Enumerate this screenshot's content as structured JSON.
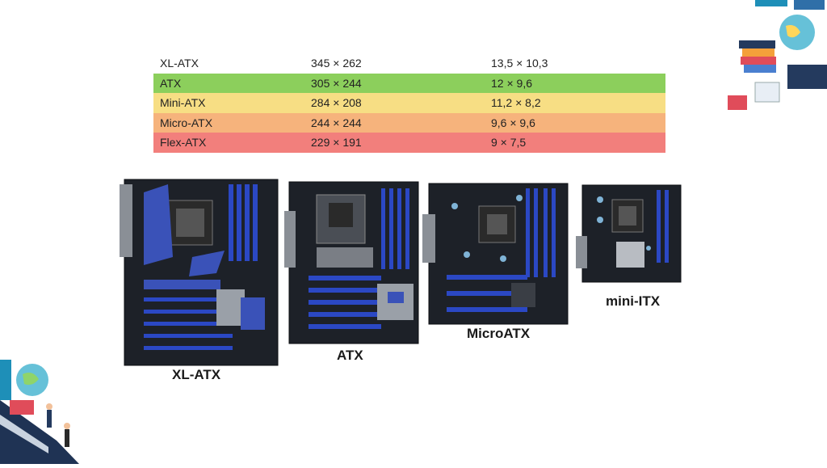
{
  "size_table": {
    "rows": [
      {
        "name": "XL-ATX",
        "mm": "345 × 262",
        "inches": "13,5 × 10,3",
        "color": "#ffffff"
      },
      {
        "name": "ATX",
        "mm": "305 × 244",
        "inches": "12 × 9,6",
        "color": "#8ccf5c"
      },
      {
        "name": "Mini-ATX",
        "mm": "284 × 208",
        "inches": "11,2 × 8,2",
        "color": "#f7de84"
      },
      {
        "name": "Micro-ATX",
        "mm": "244 × 244",
        "inches": "9,6 × 9,6",
        "color": "#f6b37c"
      },
      {
        "name": "Flex-ATX",
        "mm": "229 × 191",
        "inches": "9 × 7,5",
        "color": "#f27f7c"
      }
    ]
  },
  "boards": {
    "xl_atx": {
      "label": "XL-ATX"
    },
    "atx": {
      "label": "ATX"
    },
    "micro_atx": {
      "label": "MicroATX"
    },
    "mini_itx": {
      "label": "mini-ITX"
    }
  },
  "colors": {
    "pcb": "#1d2128",
    "slot_blue": "#2b48c4",
    "heatsink_blue": "#3a52b8",
    "socket": "#2a2a2a"
  },
  "decorations": {
    "top_right": "education-books-globe-illustration",
    "bottom_left": "education-globe-people-illustration"
  }
}
